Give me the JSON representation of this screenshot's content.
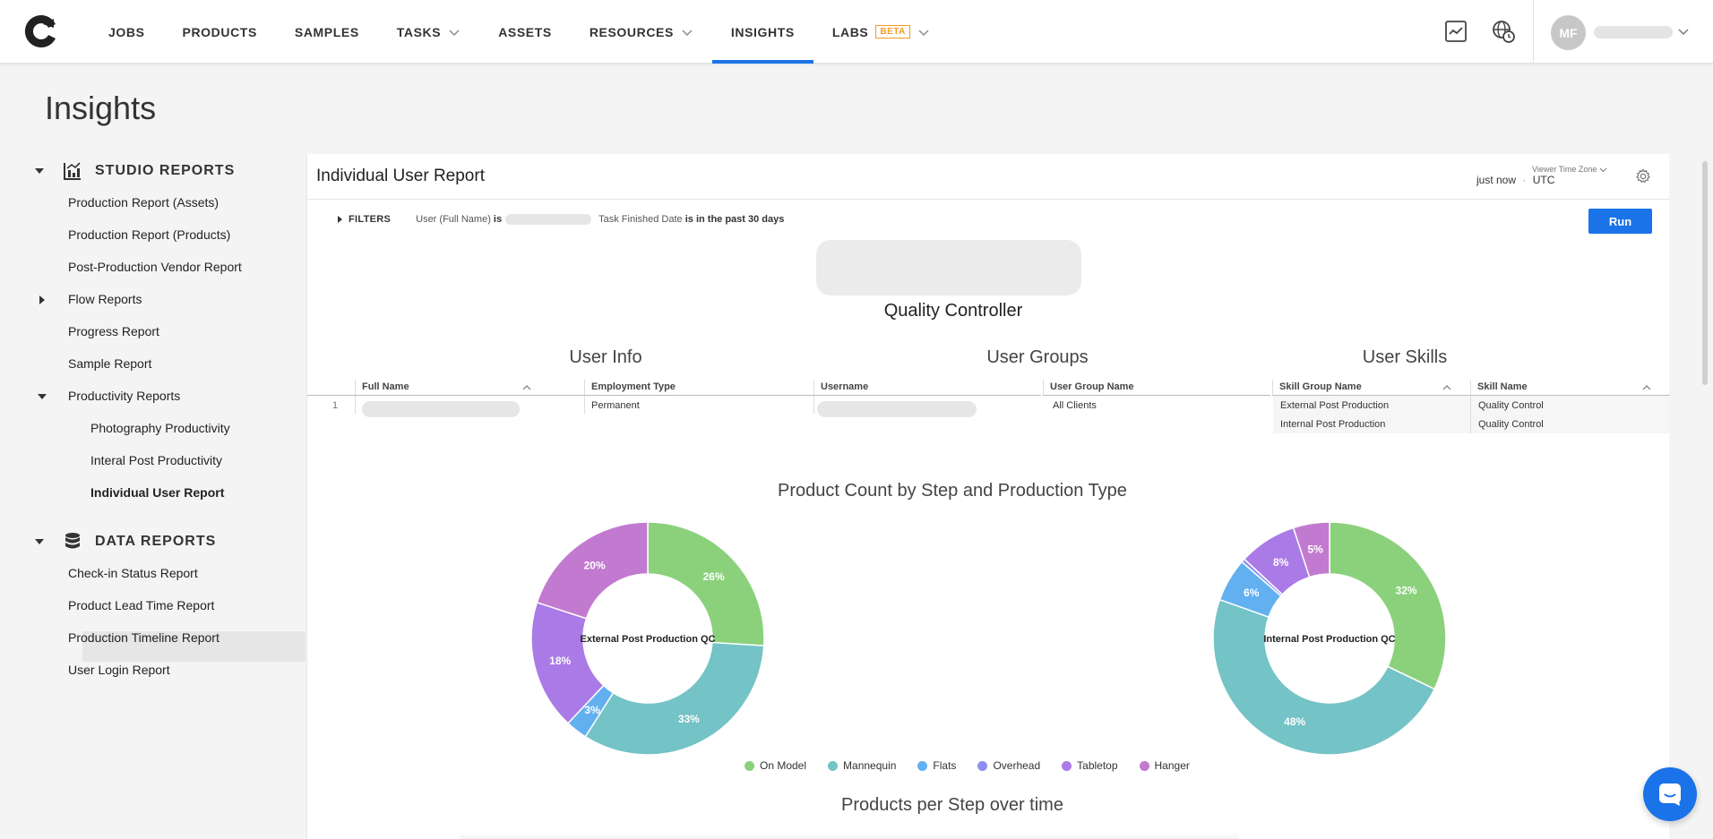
{
  "nav": {
    "items": [
      {
        "label": "JOBS",
        "has_dropdown": false,
        "active": false
      },
      {
        "label": "PRODUCTS",
        "has_dropdown": false,
        "active": false
      },
      {
        "label": "SAMPLES",
        "has_dropdown": false,
        "active": false
      },
      {
        "label": "TASKS",
        "has_dropdown": true,
        "active": false
      },
      {
        "label": "ASSETS",
        "has_dropdown": false,
        "active": false
      },
      {
        "label": "RESOURCES",
        "has_dropdown": true,
        "active": false
      },
      {
        "label": "INSIGHTS",
        "has_dropdown": false,
        "active": true
      },
      {
        "label": "LABS",
        "has_dropdown": true,
        "active": false
      }
    ],
    "beta_label": "BETA",
    "avatar_initials": "MF",
    "accent_color": "#1a73e8"
  },
  "page": {
    "title": "Insights"
  },
  "sidebar": {
    "studio_reports": {
      "label": "STUDIO REPORTS",
      "items": [
        {
          "label": "Production Report (Assets)"
        },
        {
          "label": "Production Report (Products)"
        },
        {
          "label": "Post-Production Vendor Report"
        },
        {
          "label": "Flow Reports"
        },
        {
          "label": "Progress Report"
        },
        {
          "label": "Sample Report"
        },
        {
          "label": "Productivity Reports"
        }
      ],
      "productivity_children": [
        {
          "label": "Photography Productivity"
        },
        {
          "label": "Interal Post Productivity"
        },
        {
          "label": "Individual User Report",
          "active": true
        }
      ]
    },
    "data_reports": {
      "label": "DATA REPORTS",
      "items": [
        {
          "label": "Check-in Status Report"
        },
        {
          "label": "Product Lead Time Report"
        },
        {
          "label": "Production Timeline Report"
        },
        {
          "label": "User Login Report"
        }
      ]
    }
  },
  "report": {
    "title": "Individual User Report",
    "timezone_label": "Viewer Time Zone",
    "refresh_time": "just now",
    "timezone_value": "UTC",
    "filters_label": "FILTERS",
    "filter1_field": "User (Full Name)",
    "filter1_op": "is",
    "filter2_field": "Task Finished Date",
    "filter2_op": "is in the past 30 days",
    "run_label": "Run",
    "role": "Quality Controller"
  },
  "user_info": {
    "title": "User Info",
    "columns": [
      "Full Name",
      "Employment Type",
      "Username"
    ],
    "row_number": "1",
    "employment_type": "Permanent"
  },
  "user_groups": {
    "title": "User Groups",
    "column": "User Group Name",
    "value": "All Clients"
  },
  "user_skills": {
    "title": "User Skills",
    "columns": [
      "Skill Group Name",
      "Skill Name"
    ],
    "rows": [
      {
        "group": "External Post Production",
        "skill": "Quality Control"
      },
      {
        "group": "Internal Post Production",
        "skill": "Quality Control"
      }
    ]
  },
  "chart_data": {
    "type": "pie",
    "title": "Product Count by Step and Production Type",
    "legend_position": "bottom",
    "categories": [
      "On Model",
      "Mannequin",
      "Flats",
      "Overhead",
      "Tabletop",
      "Hanger"
    ],
    "colors": [
      "#8bd17c",
      "#74c3c6",
      "#62b0f0",
      "#8f8ef0",
      "#aa7ae6",
      "#c27ad0"
    ],
    "series": [
      {
        "name": "External Post Production QC",
        "values": [
          26,
          33,
          3,
          0,
          18,
          20
        ],
        "labels": [
          "26%",
          "33%",
          "3%",
          "",
          "18%",
          "20%"
        ]
      },
      {
        "name": "Internal Post Production QC",
        "values": [
          32,
          48,
          6,
          0.5,
          8,
          5
        ],
        "labels": [
          "32%",
          "48%",
          "6%",
          "",
          "8%",
          "5%"
        ]
      }
    ]
  },
  "chart2": {
    "title": "Products per Step over time"
  }
}
